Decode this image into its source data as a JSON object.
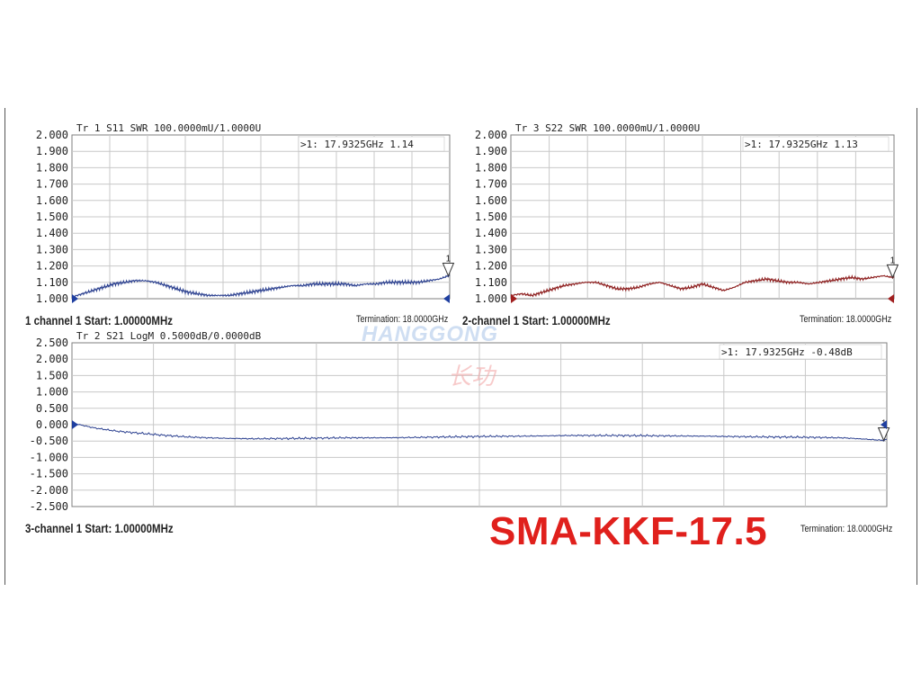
{
  "colors": {
    "grid": "#c8c8c8",
    "frame": "#7f7f7f",
    "s11": "#2a3f8f",
    "s22": "#8b1a1a",
    "s21": "#2a3f8f",
    "model": "#e0201c",
    "marker_blue": "#1f3fa0",
    "marker_red": "#a01f1f"
  },
  "model_label": "SMA-KKF-17.5",
  "watermark": {
    "brand": "HANGGONG",
    "chinese": "长功"
  },
  "panels": {
    "s11": {
      "header": "Tr 1  S11 SWR 100.0000mU/1.0000U",
      "marker": ">1:   17.9325GHz 1.14",
      "marker_num": "1",
      "start": "1 channel 1  Start: 1.00000MHz",
      "termination": "Termination: 18.0000GHz"
    },
    "s22": {
      "header": "Tr 3  S22 SWR 100.0000mU/1.0000U",
      "marker": ">1:   17.9325GHz 1.13",
      "marker_num": "1",
      "start": "2-channel 1  Start: 1.00000MHz",
      "termination": "Termination: 18.0000GHz"
    },
    "s21": {
      "header": "Tr 2  S21 LogM 0.5000dB/0.0000dB",
      "marker": ">1:   17.9325GHz -0.48dB",
      "marker_num": "1",
      "start": "3-channel 1  Start: 1.00000MHz",
      "termination": "Termination: 18.0000GHz"
    }
  },
  "chart_data": [
    {
      "type": "line",
      "title": "Tr 1  S11 SWR 100.0000mU/1.0000U",
      "xlabel": "",
      "ylabel": "",
      "xlim": [
        0.001,
        18.0
      ],
      "ylim": [
        1.0,
        2.0
      ],
      "y_ticks": [
        "2.000",
        "1.900",
        "1.800",
        "1.700",
        "1.600",
        "1.500",
        "1.400",
        "1.300",
        "1.200",
        "1.100",
        "1.000"
      ],
      "grid": true,
      "series": [
        {
          "x": [
            0.001,
            0.5,
            1,
            1.5,
            2,
            2.5,
            3,
            3.5,
            4,
            4.5,
            5,
            5.5,
            6,
            6.5,
            7,
            7.5,
            8,
            8.5,
            9,
            9.5,
            10,
            10.5,
            11,
            11,
            11.5,
            12,
            12.5,
            13,
            13.5,
            14,
            14.5,
            15,
            15.5,
            16,
            16.5,
            17,
            17.5,
            17.9325,
            18
          ],
          "values": [
            1.01,
            1.03,
            1.05,
            1.07,
            1.09,
            1.1,
            1.11,
            1.11,
            1.1,
            1.08,
            1.06,
            1.04,
            1.03,
            1.02,
            1.02,
            1.02,
            1.03,
            1.04,
            1.05,
            1.06,
            1.07,
            1.08,
            1.08,
            1.08,
            1.09,
            1.09,
            1.09,
            1.09,
            1.08,
            1.09,
            1.09,
            1.1,
            1.1,
            1.1,
            1.1,
            1.11,
            1.12,
            1.14,
            1.14
          ]
        }
      ],
      "marker": {
        "x": 17.9325,
        "y": 1.14
      }
    },
    {
      "type": "line",
      "title": "Tr 3  S22 SWR 100.0000mU/1.0000U",
      "xlabel": "",
      "ylabel": "",
      "xlim": [
        0.001,
        18.0
      ],
      "ylim": [
        1.0,
        2.0
      ],
      "y_ticks": [
        "2.000",
        "1.900",
        "1.800",
        "1.700",
        "1.600",
        "1.500",
        "1.400",
        "1.300",
        "1.200",
        "1.100",
        "1.000"
      ],
      "grid": true,
      "series": [
        {
          "x": [
            0.001,
            0.5,
            1,
            1.5,
            2,
            2.5,
            3,
            3.5,
            4,
            4.5,
            5,
            5.5,
            6,
            6.5,
            7,
            7.5,
            8,
            8.5,
            9,
            9.5,
            10,
            10.5,
            11,
            11.5,
            12,
            12.5,
            13,
            13.5,
            14,
            14.5,
            15,
            15.5,
            16,
            16.5,
            17,
            17.5,
            17.9325,
            18
          ],
          "values": [
            1.02,
            1.03,
            1.02,
            1.04,
            1.06,
            1.08,
            1.09,
            1.1,
            1.1,
            1.08,
            1.06,
            1.06,
            1.07,
            1.09,
            1.1,
            1.08,
            1.06,
            1.07,
            1.09,
            1.07,
            1.05,
            1.07,
            1.1,
            1.11,
            1.12,
            1.11,
            1.1,
            1.1,
            1.09,
            1.1,
            1.11,
            1.12,
            1.13,
            1.12,
            1.13,
            1.14,
            1.13,
            1.13
          ]
        }
      ],
      "marker": {
        "x": 17.9325,
        "y": 1.13
      }
    },
    {
      "type": "line",
      "title": "Tr 2  S21 LogM 0.5000dB/0.0000dB",
      "xlabel": "",
      "ylabel": "",
      "xlim": [
        0.001,
        18.0
      ],
      "ylim": [
        -2.5,
        2.5
      ],
      "y_ticks": [
        "2.500",
        "2.000",
        "1.500",
        "1.000",
        "0.500",
        "0.000",
        "-0.500",
        "-1.000",
        "-1.500",
        "-2.000",
        "-2.500"
      ],
      "grid": true,
      "series": [
        {
          "x": [
            0.001,
            0.5,
            1,
            1.5,
            2,
            2.5,
            3,
            3.5,
            4,
            5,
            6,
            7,
            8,
            9,
            10,
            11,
            12,
            13,
            14,
            15,
            16,
            17,
            17.5,
            17.9325,
            18
          ],
          "values": [
            0.05,
            -0.1,
            -0.2,
            -0.26,
            -0.32,
            -0.37,
            -0.4,
            -0.42,
            -0.43,
            -0.42,
            -0.4,
            -0.4,
            -0.38,
            -0.36,
            -0.35,
            -0.33,
            -0.33,
            -0.34,
            -0.35,
            -0.37,
            -0.38,
            -0.4,
            -0.44,
            -0.48,
            -0.45
          ]
        }
      ],
      "marker": {
        "x": 17.9325,
        "y": -0.48
      }
    }
  ]
}
